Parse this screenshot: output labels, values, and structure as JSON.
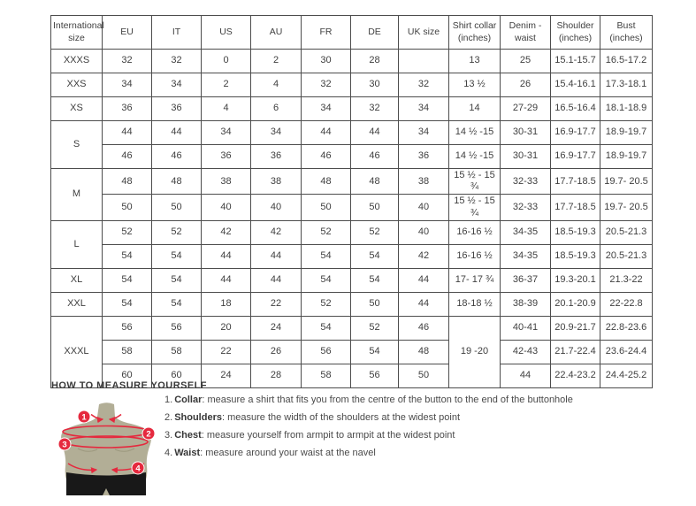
{
  "table": {
    "headers": [
      "International\nsize",
      "EU",
      "IT",
      "US",
      "AU",
      "FR",
      "DE",
      "UK size",
      "Shirt collar\n(inches)",
      "Denim -\nwaist",
      "Shoulder\n(inches)",
      "Bust (inches)"
    ],
    "rows": [
      [
        "XXXS",
        "32",
        "32",
        "0",
        "2",
        "30",
        "28",
        "",
        "13",
        "25",
        "15.1-15.7",
        "16.5-17.2"
      ],
      [
        "XXS",
        "34",
        "34",
        "2",
        "4",
        "32",
        "30",
        "32",
        "13 ½",
        "26",
        "15.4-16.1",
        "17.3-18.1"
      ],
      [
        "XS",
        "36",
        "36",
        "4",
        "6",
        "34",
        "32",
        "34",
        "14",
        "27-29",
        "16.5-16.4",
        "18.1-18.9"
      ],
      [
        {
          "text": "S",
          "rowspan": 2
        },
        "44",
        "44",
        "34",
        "34",
        "44",
        "44",
        "34",
        "14 ½ -15",
        "30-31",
        "16.9-17.7",
        "18.9-19.7"
      ],
      [
        "46",
        "46",
        "36",
        "36",
        "46",
        "46",
        "36",
        "14 ½ -15",
        "30-31",
        "16.9-17.7",
        "18.9-19.7"
      ],
      [
        {
          "text": "M",
          "rowspan": 2
        },
        "48",
        "48",
        "38",
        "38",
        "48",
        "48",
        "38",
        "15 ½ - 15 ¾",
        "32-33",
        "17.7-18.5",
        "19.7- 20.5"
      ],
      [
        "50",
        "50",
        "40",
        "40",
        "50",
        "50",
        "40",
        "15 ½ - 15 ¾",
        "32-33",
        "17.7-18.5",
        "19.7- 20.5"
      ],
      [
        {
          "text": "L",
          "rowspan": 2
        },
        "52",
        "52",
        "42",
        "42",
        "52",
        "52",
        "40",
        "16-16 ½",
        "34-35",
        "18.5-19.3",
        "20.5-21.3"
      ],
      [
        "54",
        "54",
        "44",
        "44",
        "54",
        "54",
        "42",
        "16-16 ½",
        "34-35",
        "18.5-19.3",
        "20.5-21.3"
      ],
      [
        "XL",
        "54",
        "54",
        "44",
        "44",
        "54",
        "54",
        "44",
        "17- 17 ¾",
        "36-37",
        "19.3-20.1",
        "21.3-22"
      ],
      [
        "XXL",
        "54",
        "54",
        "18",
        "22",
        "52",
        "50",
        "44",
        "18-18 ½",
        "38-39",
        "20.1-20.9",
        "22-22.8"
      ],
      [
        {
          "text": "XXXL",
          "rowspan": 3
        },
        "56",
        "56",
        "20",
        "24",
        "54",
        "52",
        "46",
        {
          "text": "19 -20",
          "rowspan": 3
        },
        "40-41",
        "20.9-21.7",
        "22.8-23.6"
      ],
      [
        "58",
        "58",
        "22",
        "26",
        "56",
        "54",
        "48",
        "42-43",
        "21.7-22.4",
        "23.6-24.4"
      ],
      [
        "60",
        "60",
        "24",
        "28",
        "58",
        "56",
        "50",
        "44",
        "22.4-23.2",
        "24.4-25.2"
      ]
    ]
  },
  "measure": {
    "heading": "HOW TO MEASURE YOURSELF",
    "steps": [
      {
        "num": "1.",
        "label": "Collar",
        "rest": ": measure a shirt that fits you from the centre of the button to the end of the buttonhole"
      },
      {
        "num": "2.",
        "label": "Shoulders",
        "rest": ": measure the width of the shoulders at the widest point"
      },
      {
        "num": "3.",
        "label": "Chest",
        "rest": ": measure yourself from armpit to armpit at the widest point"
      },
      {
        "num": "4.",
        "label": "Waist",
        "rest": ": measure around your waist at the navel"
      }
    ],
    "badges": [
      "1",
      "2",
      "3",
      "4"
    ]
  },
  "colors": {
    "accent_red": "#e5293e",
    "torso": "#b2ae96",
    "shorts": "#181818",
    "table_border": "#4d4d4d"
  }
}
